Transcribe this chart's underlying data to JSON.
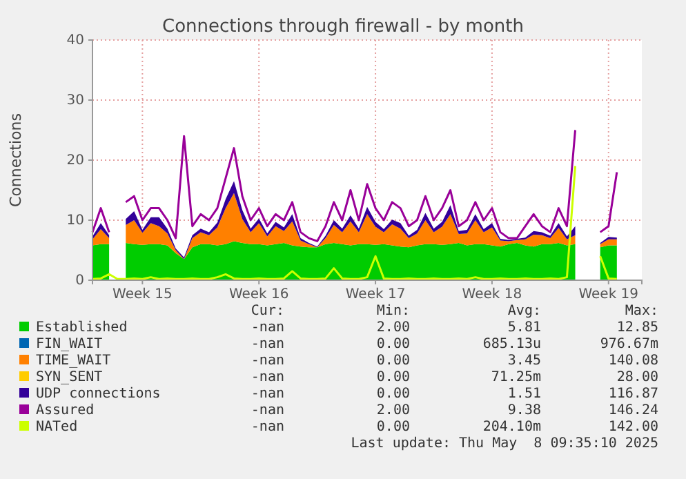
{
  "chart_data": {
    "type": "area",
    "title": "Connections through firewall - by month",
    "ylabel": "Connections",
    "stacked": true,
    "grid": true,
    "legend": "bottom",
    "x": [
      "2025-04-06T12:00",
      "2025-04-07T00:00",
      "2025-04-07T12:00",
      "2025-04-08T00:00",
      "2025-04-08T12:00",
      "2025-04-09T00:00",
      "2025-04-09T12:00",
      "2025-04-10T00:00",
      "2025-04-10T12:00",
      "2025-04-11T00:00",
      "2025-04-11T12:00",
      "2025-04-12T00:00",
      "2025-04-12T12:00",
      "2025-04-13T00:00",
      "2025-04-13T12:00",
      "2025-04-14T00:00",
      "2025-04-14T12:00",
      "2025-04-15T00:00",
      "2025-04-15T12:00",
      "2025-04-16T00:00",
      "2025-04-16T12:00",
      "2025-04-17T00:00",
      "2025-04-17T12:00",
      "2025-04-18T00:00",
      "2025-04-18T12:00",
      "2025-04-19T00:00",
      "2025-04-19T12:00",
      "2025-04-20T00:00",
      "2025-04-20T12:00",
      "2025-04-21T00:00",
      "2025-04-21T12:00",
      "2025-04-22T00:00",
      "2025-04-22T12:00",
      "2025-04-23T00:00",
      "2025-04-23T12:00",
      "2025-04-24T00:00",
      "2025-04-24T12:00",
      "2025-04-25T00:00",
      "2025-04-25T12:00",
      "2025-04-26T00:00",
      "2025-04-26T12:00",
      "2025-04-27T00:00",
      "2025-04-27T12:00",
      "2025-04-28T00:00",
      "2025-04-28T12:00",
      "2025-04-29T00:00",
      "2025-04-29T12:00",
      "2025-04-30T00:00",
      "2025-04-30T12:00",
      "2025-05-01T00:00",
      "2025-05-01T12:00",
      "2025-05-02T00:00",
      "2025-05-02T12:00",
      "2025-05-03T00:00",
      "2025-05-03T12:00",
      "2025-05-04T00:00",
      "2025-05-04T12:00",
      "2025-05-05T00:00",
      "2025-05-05T12:00",
      "2025-05-06T00:00",
      "2025-05-06T12:00",
      "2025-05-07T00:00",
      "2025-05-07T12:00",
      "2025-05-08T00:00"
    ],
    "xlim": [
      "2025-04-06T12:00",
      "2025-05-09T12:00"
    ],
    "xticks": [
      {
        "value": "2025-04-09T12:00",
        "label": "Week 15"
      },
      {
        "value": "2025-04-16T12:00",
        "label": "Week 16"
      },
      {
        "value": "2025-04-23T12:00",
        "label": "Week 17"
      },
      {
        "value": "2025-04-30T12:00",
        "label": "Week 18"
      },
      {
        "value": "2025-05-07T12:00",
        "label": "Week 19"
      }
    ],
    "ylim": [
      0,
      40
    ],
    "yticks": [
      0,
      10,
      20,
      30,
      40
    ],
    "series": [
      {
        "name": "Established",
        "color": "#00cc00",
        "values": [
          5.8,
          6,
          6,
          null,
          6.2,
          6,
          5.9,
          6,
          6,
          5.8,
          4.5,
          3.5,
          5.5,
          6,
          6,
          5.8,
          6,
          6.5,
          6.2,
          6,
          6,
          5.8,
          6,
          6.2,
          5.8,
          5.6,
          5.5,
          5.5,
          6,
          6.2,
          6,
          5.8,
          6,
          6,
          5.9,
          6,
          5.8,
          5.6,
          5.5,
          5.8,
          6,
          6,
          5.9,
          6,
          6.2,
          5.8,
          6,
          6,
          5.8,
          5.6,
          6,
          6.2,
          5.8,
          5.6,
          6,
          6,
          6.2,
          5.8,
          6,
          null,
          null,
          5.5,
          5.8,
          5.8
        ]
      },
      {
        "name": "FIN_WAIT",
        "color": "#0066b3",
        "values": [
          null,
          null,
          null,
          null,
          null,
          null,
          null,
          null,
          null,
          null,
          null,
          null,
          null,
          null,
          null,
          null,
          null,
          null,
          null,
          null,
          null,
          null,
          null,
          null,
          null,
          null,
          null,
          null,
          null,
          null,
          null,
          null,
          null,
          null,
          null,
          null,
          null,
          null,
          null,
          null,
          null,
          null,
          null,
          null,
          null,
          null,
          null,
          null,
          null,
          null,
          null,
          null,
          null,
          null,
          null,
          null,
          null,
          null,
          null,
          null,
          null,
          null,
          null,
          null
        ]
      },
      {
        "name": "TIME_WAIT",
        "color": "#ff8000",
        "values": [
          1,
          2.5,
          1,
          null,
          3,
          4,
          2,
          3.5,
          3,
          2,
          0.5,
          0,
          1.5,
          2,
          1.5,
          3,
          6,
          8,
          4,
          2,
          3.5,
          1.5,
          3,
          2,
          4,
          1,
          0.5,
          0,
          1,
          3,
          2,
          4,
          2,
          5,
          3,
          2,
          3.5,
          3,
          1.5,
          2,
          4,
          2,
          3,
          5,
          1.5,
          2,
          4,
          2,
          3,
          1,
          0.5,
          0.5,
          1,
          2,
          1.5,
          1,
          2.5,
          1,
          1.5,
          null,
          null,
          0.5,
          1,
          1
        ]
      },
      {
        "name": "SYN_SENT",
        "color": "#ffcc00",
        "values": [
          null,
          null,
          null,
          null,
          null,
          null,
          null,
          null,
          null,
          null,
          null,
          null,
          null,
          null,
          null,
          null,
          null,
          null,
          null,
          null,
          null,
          null,
          null,
          null,
          null,
          null,
          null,
          null,
          null,
          null,
          null,
          null,
          null,
          null,
          null,
          null,
          null,
          null,
          null,
          null,
          null,
          null,
          null,
          null,
          null,
          null,
          null,
          null,
          null,
          null,
          null,
          null,
          null,
          null,
          null,
          null,
          null,
          null,
          null,
          null,
          null,
          null,
          null,
          null
        ]
      },
      {
        "name": "UDP connections",
        "color": "#330099",
        "values": [
          0.5,
          1,
          0.5,
          null,
          1,
          1.5,
          0.5,
          1,
          1.5,
          0.8,
          0.3,
          0.3,
          0.5,
          0.6,
          0.5,
          0.8,
          1.5,
          2,
          1.5,
          0.6,
          0.8,
          0.5,
          0.7,
          0.6,
          1.2,
          0.4,
          0.2,
          0.1,
          0.4,
          0.8,
          0.6,
          1,
          0.6,
          1.2,
          0.8,
          0.5,
          0.8,
          0.9,
          0.4,
          0.6,
          1.2,
          0.6,
          0.8,
          1.5,
          0.5,
          0.6,
          1,
          0.5,
          0.7,
          0.3,
          0.2,
          0.2,
          0.3,
          0.6,
          0.5,
          0.4,
          0.8,
          0.5,
          1.5,
          null,
          null,
          0.2,
          0.4,
          0.3
        ]
      },
      {
        "name": "Assured",
        "type": "line",
        "color": "#990099",
        "values": [
          8,
          12,
          8,
          null,
          13,
          14,
          10,
          12,
          12,
          10,
          7,
          24,
          9,
          11,
          10,
          12,
          17,
          22,
          14,
          10,
          12,
          9,
          11,
          10,
          13,
          8,
          7,
          6.5,
          9,
          13,
          10,
          15,
          10,
          16,
          12,
          10,
          13,
          12,
          9,
          10,
          14,
          10,
          12,
          15,
          9,
          10,
          13,
          10,
          12,
          8,
          7,
          7,
          9,
          11,
          9,
          8,
          12,
          9,
          25,
          null,
          null,
          8,
          9,
          18
        ]
      },
      {
        "name": "NATed",
        "type": "line",
        "color": "#ccff00",
        "values": [
          0.2,
          0.3,
          1,
          0.2,
          0.2,
          0.3,
          0.2,
          0.5,
          0.2,
          0.3,
          0.2,
          0.2,
          0.3,
          0.2,
          0.2,
          0.5,
          1,
          0.3,
          0.2,
          0.2,
          0.3,
          0.2,
          0.2,
          0.3,
          1.5,
          0.3,
          0.2,
          0.2,
          0.3,
          2,
          0.3,
          0.2,
          0.2,
          0.5,
          4,
          0.3,
          0.2,
          0.2,
          0.3,
          0.2,
          0.2,
          0.3,
          0.2,
          0.2,
          0.3,
          0.2,
          0.5,
          0.2,
          0.2,
          0.3,
          0.2,
          0.2,
          0.3,
          0.2,
          0.2,
          0.3,
          0.2,
          0.5,
          19,
          null,
          null,
          4,
          0.3,
          0.2
        ]
      }
    ],
    "annotations": [
      "Cur:",
      "Min:",
      "Avg:",
      "Max:",
      "-nan",
      "2.00",
      "5.81",
      "12.85",
      "-nan",
      "0.00",
      "685.13u",
      "976.67m",
      "-nan",
      "0.00",
      "3.45",
      "140.08",
      "-nan",
      "0.00",
      "71.25m",
      "28.00",
      "-nan",
      "0.00",
      "1.51",
      "116.87",
      "-nan",
      "2.00",
      "9.38",
      "146.24",
      "-nan",
      "0.00",
      "204.10m",
      "142.00",
      "Last update: Thu May  8 09:35:10 2025"
    ]
  }
}
